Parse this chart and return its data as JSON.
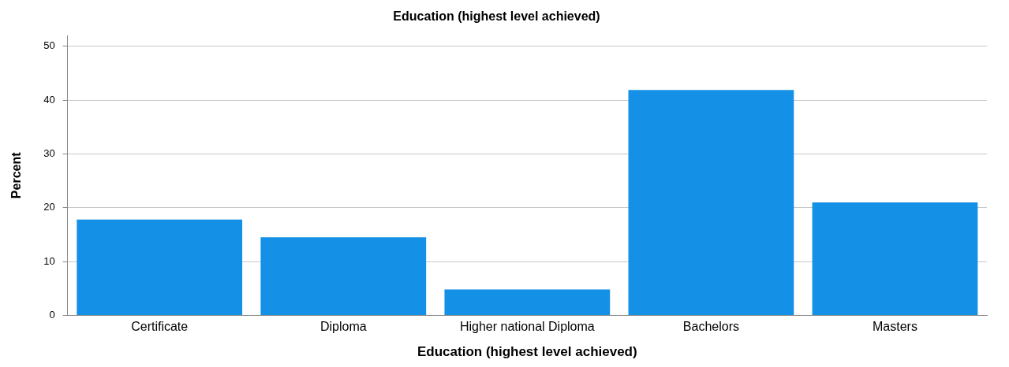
{
  "chart_data": {
    "type": "bar",
    "title": "Education (highest level achieved)",
    "xlabel": "Education (highest level achieved)",
    "ylabel": "Percent",
    "categories": [
      "Certificate",
      "Diploma",
      "Higher national Diploma",
      "Bachelors",
      "Masters"
    ],
    "values": [
      17.8,
      14.5,
      4.8,
      41.9,
      21.0
    ],
    "color": "#1490e6",
    "ylim": [
      0,
      52
    ],
    "yticks": [
      0,
      10,
      20,
      30,
      40,
      50
    ],
    "grid": "y",
    "legend": false
  }
}
